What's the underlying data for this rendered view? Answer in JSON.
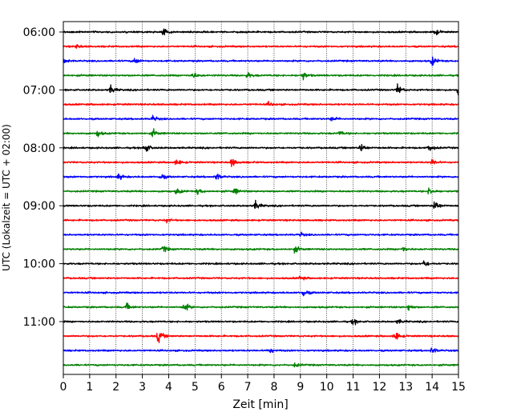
{
  "chart_data": {
    "type": "line",
    "title": "",
    "xlabel": "Zeit  [min]",
    "ylabel": "UTC (Lokalzeit = UTC + 02:00)",
    "xlim": [
      0,
      15
    ],
    "x_ticks": [
      "0",
      "1",
      "2",
      "3",
      "4",
      "5",
      "6",
      "7",
      "8",
      "9",
      "10",
      "11",
      "12",
      "13",
      "14",
      "15"
    ],
    "y_tick_labels": [
      "06:00",
      "07:00",
      "08:00",
      "09:00",
      "10:00",
      "11:00"
    ],
    "y_tick_rows": [
      0,
      4,
      8,
      12,
      16,
      20
    ],
    "grid": "vertical-dotted",
    "trace_interval_minutes": 15,
    "start_time": "06:00",
    "trace_color_cycle": [
      "#000000",
      "#ff0000",
      "#0000ff",
      "#008000"
    ],
    "traces": [
      {
        "start": "06:00",
        "color": "#000000",
        "events": [
          {
            "t": 3.8,
            "amp": 1.5
          },
          {
            "t": 14.1,
            "amp": 1.4
          }
        ]
      },
      {
        "start": "06:15",
        "color": "#ff0000",
        "events": [
          {
            "t": 0.5,
            "amp": 0.8
          }
        ]
      },
      {
        "start": "06:30",
        "color": "#0000ff",
        "events": [
          {
            "t": 0.0,
            "amp": 1.4
          },
          {
            "t": 2.7,
            "amp": 1.3
          },
          {
            "t": 14.0,
            "amp": 1.8
          }
        ]
      },
      {
        "start": "06:45",
        "color": "#008000",
        "events": [
          {
            "t": 4.9,
            "amp": 1.4
          },
          {
            "t": 7.0,
            "amp": 1.2
          },
          {
            "t": 9.1,
            "amp": 1.6
          }
        ]
      },
      {
        "start": "07:00",
        "color": "#000000",
        "events": [
          {
            "t": 1.8,
            "amp": 1.6
          },
          {
            "t": 12.7,
            "amp": 2.3
          },
          {
            "t": 15.0,
            "amp": 2.6
          }
        ]
      },
      {
        "start": "07:15",
        "color": "#ff0000",
        "events": [
          {
            "t": 7.8,
            "amp": 0.8
          }
        ]
      },
      {
        "start": "07:30",
        "color": "#0000ff",
        "events": [
          {
            "t": 3.4,
            "amp": 1.2
          },
          {
            "t": 10.2,
            "amp": 0.9
          }
        ]
      },
      {
        "start": "07:45",
        "color": "#008000",
        "events": [
          {
            "t": 1.3,
            "amp": 1.3
          },
          {
            "t": 3.4,
            "amp": 1.5
          },
          {
            "t": 10.5,
            "amp": 0.9
          }
        ]
      },
      {
        "start": "08:00",
        "color": "#000000",
        "events": [
          {
            "t": 3.1,
            "amp": 2.3
          },
          {
            "t": 11.3,
            "amp": 1.9
          },
          {
            "t": 13.9,
            "amp": 1.6
          }
        ]
      },
      {
        "start": "08:15",
        "color": "#ff0000",
        "events": [
          {
            "t": 4.3,
            "amp": 1.3
          },
          {
            "t": 6.4,
            "amp": 1.8
          },
          {
            "t": 14.0,
            "amp": 1.3
          }
        ]
      },
      {
        "start": "08:30",
        "color": "#0000ff",
        "events": [
          {
            "t": 2.1,
            "amp": 1.2
          },
          {
            "t": 3.7,
            "amp": 1.3
          },
          {
            "t": 5.8,
            "amp": 1.6
          }
        ]
      },
      {
        "start": "08:45",
        "color": "#008000",
        "events": [
          {
            "t": 4.3,
            "amp": 1.3
          },
          {
            "t": 5.1,
            "amp": 1.3
          },
          {
            "t": 6.5,
            "amp": 1.4
          },
          {
            "t": 13.9,
            "amp": 1.8
          }
        ]
      },
      {
        "start": "09:00",
        "color": "#000000",
        "events": [
          {
            "t": 7.3,
            "amp": 1.8
          },
          {
            "t": 14.1,
            "amp": 2.5
          }
        ]
      },
      {
        "start": "09:15",
        "color": "#ff0000",
        "events": [
          {
            "t": 3.9,
            "amp": 0.8
          }
        ]
      },
      {
        "start": "09:30",
        "color": "#0000ff",
        "events": [
          {
            "t": 9.0,
            "amp": 0.8
          }
        ]
      },
      {
        "start": "09:45",
        "color": "#008000",
        "events": [
          {
            "t": 3.8,
            "amp": 1.4
          },
          {
            "t": 8.8,
            "amp": 1.3
          },
          {
            "t": 12.9,
            "amp": 1.2
          }
        ]
      },
      {
        "start": "10:00",
        "color": "#000000",
        "events": [
          {
            "t": 13.7,
            "amp": 1.6
          }
        ]
      },
      {
        "start": "10:15",
        "color": "#ff0000",
        "events": [
          {
            "t": 9.0,
            "amp": 0.8
          }
        ]
      },
      {
        "start": "10:30",
        "color": "#0000ff",
        "events": [
          {
            "t": 9.1,
            "amp": 1.8
          }
        ]
      },
      {
        "start": "10:45",
        "color": "#008000",
        "events": [
          {
            "t": 2.4,
            "amp": 1.4
          },
          {
            "t": 4.6,
            "amp": 1.9
          },
          {
            "t": 13.1,
            "amp": 1.3
          }
        ]
      },
      {
        "start": "11:00",
        "color": "#000000",
        "events": [
          {
            "t": 11.0,
            "amp": 1.2
          },
          {
            "t": 12.7,
            "amp": 0.9
          }
        ]
      },
      {
        "start": "11:15",
        "color": "#ff0000",
        "events": [
          {
            "t": 3.6,
            "amp": 2.8
          },
          {
            "t": 12.6,
            "amp": 2.1
          }
        ]
      },
      {
        "start": "11:30",
        "color": "#0000ff",
        "events": [
          {
            "t": 7.8,
            "amp": 1.3
          },
          {
            "t": 14.0,
            "amp": 1.3
          }
        ]
      },
      {
        "start": "11:45",
        "color": "#008000",
        "events": [
          {
            "t": 8.8,
            "amp": 0.9
          }
        ]
      }
    ]
  }
}
